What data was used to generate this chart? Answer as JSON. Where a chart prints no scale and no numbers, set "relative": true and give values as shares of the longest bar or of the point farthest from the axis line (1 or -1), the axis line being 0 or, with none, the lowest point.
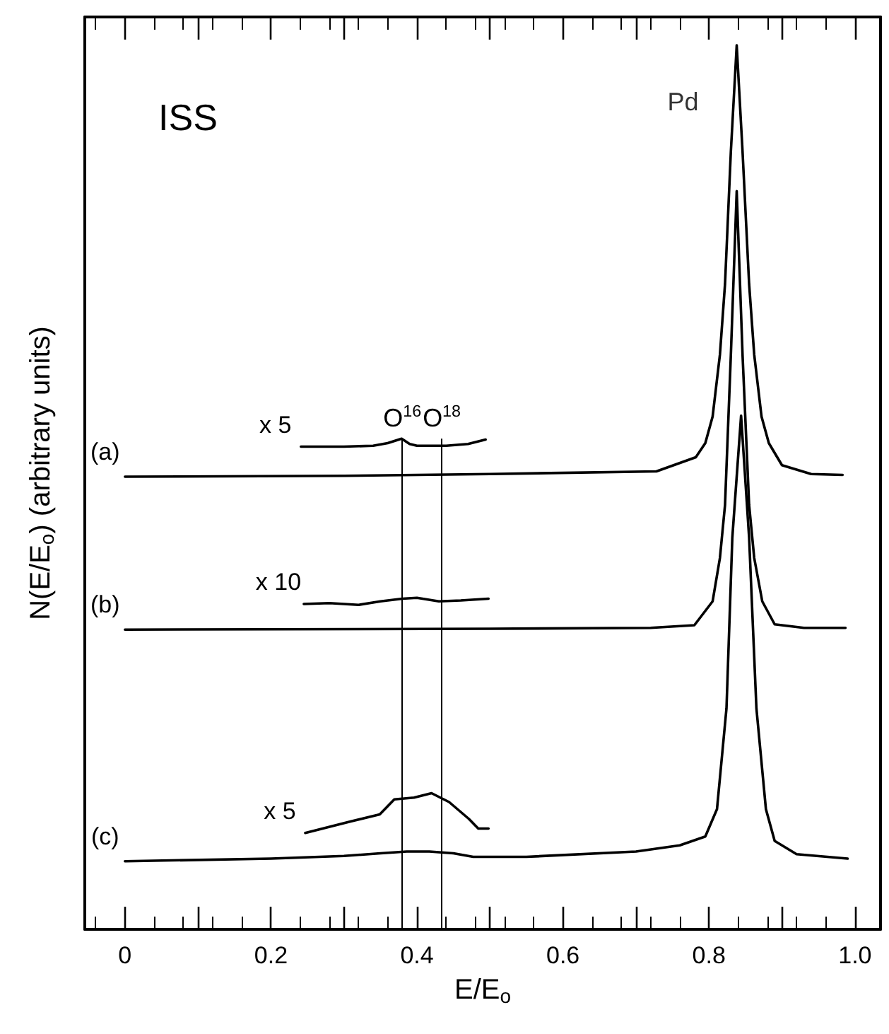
{
  "chart_data": {
    "type": "line",
    "relative": true,
    "xlabel": "E/E$_{o}$",
    "ylabel": "N(E/E$_{o}$) (arbitrary units)",
    "annotations": [
      "ISS",
      {
        "text": "Pd",
        "x": 0.838,
        "y": 1.0
      }
    ],
    "xlim": [
      -0.055,
      1.035
    ],
    "xticks": [
      {
        "value": 0,
        "label": "0"
      },
      {
        "value": 0.1,
        "label": null
      },
      0.2,
      {
        "value": 0.3,
        "label": null
      },
      0.4,
      {
        "value": 0.5,
        "label": null
      },
      0.6,
      {
        "value": 0.7,
        "label": null
      },
      0.8,
      {
        "value": 0.9,
        "label": null
      },
      {
        "value": 1.0,
        "label": "1.0"
      }
    ],
    "tick_labels": "x",
    "grid": false,
    "legend": false,
    "marker": "none",
    "line_style": "solid",
    "ref_lines": [
      {
        "axis": "x",
        "value": 0.38,
        "label": "O$^{16}$"
      },
      {
        "axis": "x",
        "value": 0.434,
        "label": "O$^{18}$"
      }
    ],
    "series": [
      {
        "name": "(a)",
        "color": "#000000",
        "x": [
          0,
          0.3,
          0.5,
          0.728,
          0.782,
          0.795,
          0.805,
          0.815,
          0.822,
          0.83,
          0.838,
          0.846,
          0.855,
          0.862,
          0.872,
          0.882,
          0.9,
          0.94,
          0.983
        ],
        "values": [
          0.512,
          0.513,
          0.515,
          0.518,
          0.534,
          0.55,
          0.58,
          0.65,
          0.73,
          0.88,
          1.0,
          0.88,
          0.73,
          0.65,
          0.58,
          0.55,
          0.525,
          0.515,
          0.514
        ]
      },
      {
        "name": "x 5",
        "color": "#000000",
        "x": [
          0.241,
          0.3,
          0.34,
          0.36,
          0.379,
          0.39,
          0.4,
          0.44,
          0.47,
          0.494
        ],
        "values": [
          0.546,
          0.546,
          0.547,
          0.55,
          0.555,
          0.549,
          0.547,
          0.547,
          0.549,
          0.554
        ]
      },
      {
        "name": "(b)",
        "color": "#000000",
        "x": [
          0,
          0.5,
          0.72,
          0.78,
          0.805,
          0.815,
          0.822,
          0.83,
          0.838,
          0.846,
          0.855,
          0.862,
          0.873,
          0.89,
          0.93,
          0.987
        ],
        "values": [
          0.339,
          0.34,
          0.341,
          0.344,
          0.371,
          0.42,
          0.48,
          0.65,
          0.835,
          0.65,
          0.48,
          0.42,
          0.371,
          0.345,
          0.341,
          0.341
        ]
      },
      {
        "name": "x 10",
        "color": "#000000",
        "x": [
          0.245,
          0.28,
          0.32,
          0.35,
          0.38,
          0.4,
          0.43,
          0.46,
          0.498
        ],
        "values": [
          0.368,
          0.369,
          0.367,
          0.371,
          0.374,
          0.375,
          0.371,
          0.372,
          0.374
        ]
      },
      {
        "name": "(c)",
        "color": "#000000",
        "x": [
          0,
          0.2,
          0.3,
          0.35,
          0.386,
          0.417,
          0.45,
          0.477,
          0.55,
          0.7,
          0.76,
          0.795,
          0.811,
          0.824,
          0.832,
          0.844,
          0.855,
          0.865,
          0.878,
          0.89,
          0.92,
          0.99
        ],
        "values": [
          0.077,
          0.08,
          0.083,
          0.086,
          0.088,
          0.088,
          0.086,
          0.082,
          0.082,
          0.088,
          0.095,
          0.105,
          0.136,
          0.25,
          0.443,
          0.581,
          0.443,
          0.25,
          0.136,
          0.1,
          0.085,
          0.08
        ]
      },
      {
        "name": "x 5",
        "color": "#000000",
        "x": [
          0.247,
          0.309,
          0.349,
          0.369,
          0.396,
          0.42,
          0.444,
          0.471,
          0.484,
          0.498
        ],
        "values": [
          0.109,
          0.122,
          0.13,
          0.147,
          0.149,
          0.154,
          0.144,
          0.125,
          0.114,
          0.114
        ]
      }
    ]
  }
}
